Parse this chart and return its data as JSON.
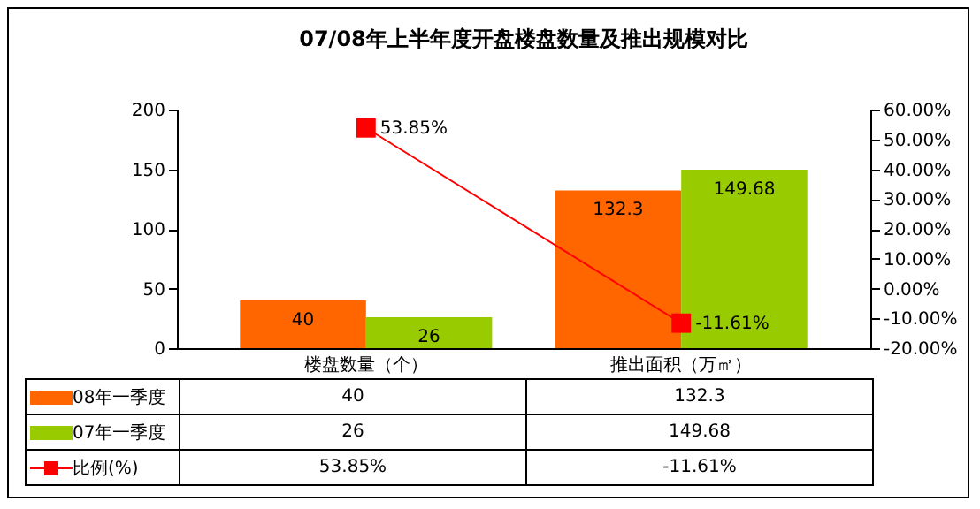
{
  "chart_data": {
    "type": "bar",
    "title": "07/08年上半年度开盘楼盘数量及推出规模对比",
    "categories": [
      "楼盘数量（个）",
      "推出面积（万㎡）"
    ],
    "series": [
      {
        "name": "08年一季度",
        "color": "#ff6600",
        "values": [
          40,
          132.3
        ],
        "value_labels": [
          "40",
          "132.3"
        ]
      },
      {
        "name": "07年一季度",
        "color": "#99cc00",
        "values": [
          26,
          149.68
        ],
        "value_labels": [
          "26",
          "149.68"
        ]
      },
      {
        "name": "比例(%)",
        "type": "line",
        "axis": "y2",
        "color": "#ff0000",
        "values": [
          53.85,
          -11.61
        ],
        "value_labels": [
          "53.85%",
          "-11.61%"
        ]
      }
    ],
    "ylim": [
      0,
      200
    ],
    "yticks": [
      0,
      50,
      100,
      150,
      200
    ],
    "y2lim": [
      -20,
      60
    ],
    "y2ticks": [
      {
        "value": -20,
        "label": "-20.00%"
      },
      {
        "value": -10,
        "label": "-10.00%"
      },
      {
        "value": 0,
        "label": "0.00%"
      },
      {
        "value": 10,
        "label": "10.00%"
      },
      {
        "value": 20,
        "label": "20.00%"
      },
      {
        "value": 30,
        "label": "30.00%"
      },
      {
        "value": 40,
        "label": "40.00%"
      },
      {
        "value": 50,
        "label": "50.00%"
      },
      {
        "value": 60,
        "label": "60.00%"
      }
    ],
    "data_labels": true,
    "marker": "square",
    "legend": "bottom",
    "grid": false
  }
}
